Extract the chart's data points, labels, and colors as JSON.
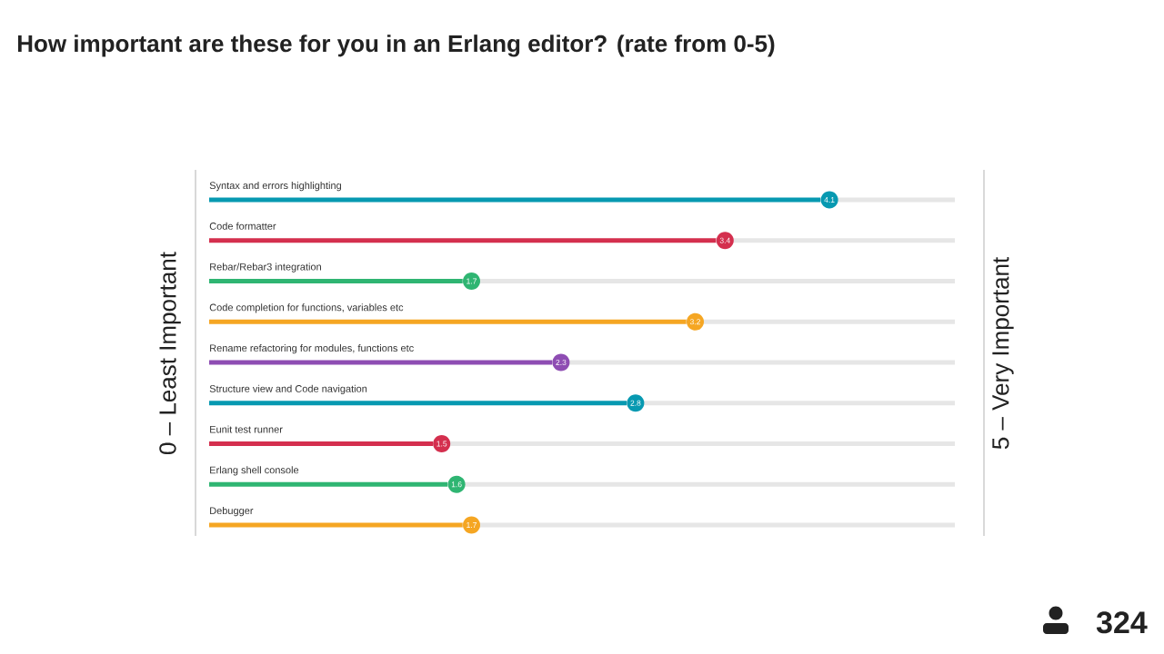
{
  "chart_data": {
    "type": "bar",
    "orientation": "horizontal",
    "stacked": true,
    "title": "How important are these for you in an Erlang editor? (rate from 0-5)",
    "ylabel": "0 – Least Important",
    "y2label": "5 – Very Important",
    "categories": [
      "Syntax and errors highlighting",
      "Code formatter",
      "Rebar/Rebar3 integration",
      "Code completion for functions, variables etc",
      "Rename refactoring for modules, functions etc",
      "Structure view and Code navigation",
      "Eunit test runner",
      "Erlang shell console",
      "Debugger"
    ],
    "series": [
      {
        "colors": [
          "#0799b1",
          "#d42f4e",
          "#2fb572",
          "#f5a623",
          "#8e4db3",
          "#0799b1",
          "#d42f4e",
          "#2fb572",
          "#f5a623"
        ],
        "values": [
          4.1,
          3.4,
          1.7,
          3.2,
          2.3,
          2.8,
          1.5,
          1.6,
          1.7
        ],
        "value_labels": [
          "4.1",
          "3.4",
          "1.7",
          "3.2",
          "2.3",
          "2.8",
          "1.5",
          "1.6",
          "1.7"
        ]
      },
      {
        "color": "#e6e6e6",
        "values": [
          0.9,
          1.6,
          3.3,
          1.8,
          2.7,
          2.2,
          3.5,
          3.4,
          3.3
        ]
      }
    ],
    "xlim": [
      0,
      5
    ],
    "tick_labels": "y",
    "annotations": [
      "324"
    ]
  }
}
